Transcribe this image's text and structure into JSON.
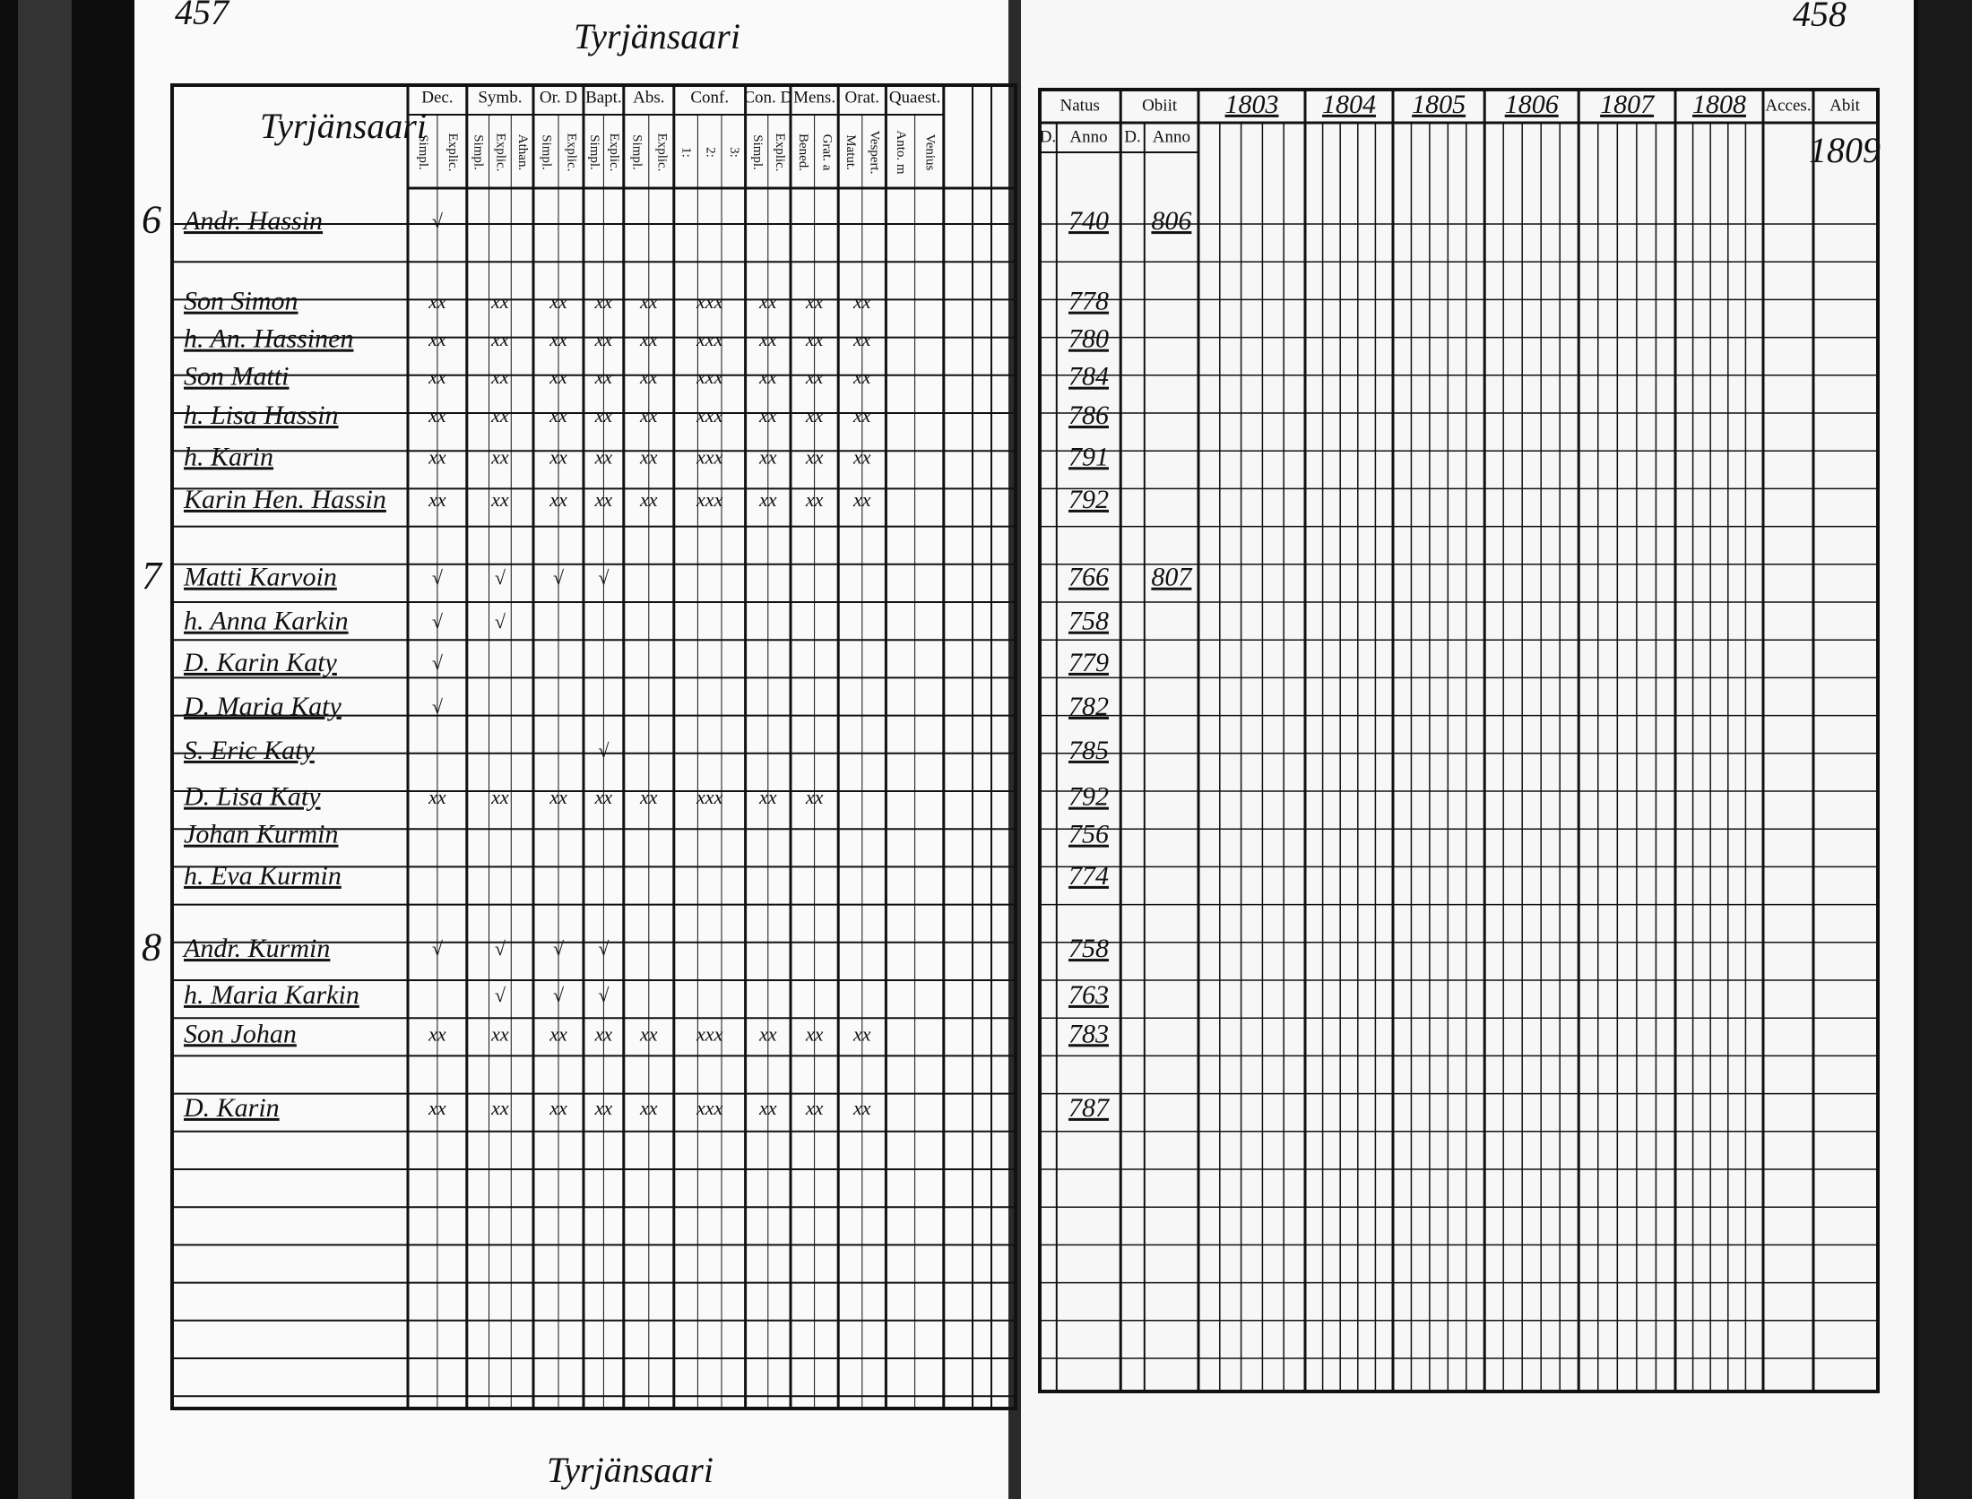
{
  "left_page": {
    "page_number": "457",
    "running_head": "Tyrjänsaari",
    "name_header": "Tyrjänsaari",
    "footer": "Tyrjänsaari",
    "column_groups": [
      {
        "label": "Dec.",
        "subs": [
          "Simpl.",
          "Explic."
        ]
      },
      {
        "label": "Symb.",
        "subs": [
          "Simpl.",
          "Explic.",
          "Athan."
        ]
      },
      {
        "label": "Or. D",
        "subs": [
          "Simpl.",
          "Explic."
        ]
      },
      {
        "label": "Bapt.",
        "subs": [
          "Simpl.",
          "Explic."
        ]
      },
      {
        "label": "Abs.",
        "subs": [
          "Simpl.",
          "Explic."
        ]
      },
      {
        "label": "Conf.",
        "subs": [
          "1:",
          "2:",
          "3:"
        ]
      },
      {
        "label": "Con. D",
        "subs": [
          "Simpl.",
          "Explic."
        ]
      },
      {
        "label": "Mens.",
        "subs": [
          "Bened.",
          "Grat. a"
        ]
      },
      {
        "label": "Orat.",
        "subs": [
          "Matut.",
          "Vespert."
        ]
      },
      {
        "label": "Quaest.",
        "subs": [
          "Anto. m",
          "Venius"
        ]
      }
    ],
    "households": [
      {
        "number": "6",
        "members": [
          {
            "name": "Andr. Hassin",
            "born": "740",
            "died": "806",
            "marks": [
              "√",
              null,
              null,
              null,
              null,
              null,
              null,
              null,
              null
            ]
          },
          {
            "name": "Son Simon",
            "born": "778",
            "marks": [
              "xx",
              "xx",
              "xx",
              "xx",
              "xx",
              "xxx",
              "xx",
              "xx",
              "xx"
            ]
          },
          {
            "name": "h. An. Hassinen",
            "born": "780",
            "marks": [
              "xx",
              "xx",
              "xx",
              "xx",
              "xx",
              "xxx",
              "xx",
              "xx",
              "xx"
            ]
          },
          {
            "name": "Son Matti",
            "born": "784",
            "marks": [
              "xx",
              "xx",
              "xx",
              "xx",
              "xx",
              "xxx",
              "xx",
              "xx",
              "xx"
            ]
          },
          {
            "name": "h. Lisa Hassin",
            "born": "786",
            "marks": [
              "xx",
              "xx",
              "xx",
              "xx",
              "xx",
              "xxx",
              "xx",
              "xx",
              "xx"
            ]
          },
          {
            "name": "h. Karin",
            "born": "791",
            "marks": [
              "xx",
              "xx",
              "xx",
              "xx",
              "xx",
              "xxx",
              "xx",
              "xx",
              "xx"
            ]
          },
          {
            "name": "Karin Hen. Hassin",
            "born": "792",
            "marks": [
              "xx",
              "xx",
              "xx",
              "xx",
              "xx",
              "xxx",
              "xx",
              "xx",
              "xx"
            ]
          }
        ]
      },
      {
        "number": "7",
        "members": [
          {
            "name": "Matti Karvoin",
            "born": "766",
            "died": "807",
            "marks": [
              "√",
              "√",
              "√",
              "√",
              null,
              null,
              null,
              null,
              null
            ]
          },
          {
            "name": "h. Anna Karkin",
            "born": "758",
            "marks": [
              "√",
              "√",
              null,
              null,
              null,
              null,
              null,
              null,
              null
            ]
          },
          {
            "name": "D. Karin Katy",
            "born": "779",
            "marks": [
              "√",
              null,
              null,
              null,
              null,
              null,
              null,
              null,
              null
            ]
          },
          {
            "name": "D. Maria Katy",
            "born": "782",
            "marks": [
              "√",
              null,
              null,
              null,
              null,
              null,
              null,
              null,
              null
            ]
          },
          {
            "name": "S. Eric Katy",
            "born": "785",
            "marks": [
              null,
              null,
              null,
              "√",
              null,
              null,
              null,
              null,
              null
            ]
          },
          {
            "name": "D. Lisa Katy",
            "born": "792",
            "marks": [
              "xx",
              "xx",
              "xx",
              "xx",
              "xx",
              "xxx",
              "xx",
              "xx",
              null
            ]
          },
          {
            "name": "Johan Kurmin",
            "born": "756"
          },
          {
            "name": "h. Eva Kurmin",
            "born": "774"
          }
        ]
      },
      {
        "number": "8",
        "members": [
          {
            "name": "Andr. Kurmin",
            "born": "758",
            "marks": [
              "√",
              "√",
              "√",
              "√",
              null,
              null,
              null,
              null,
              null
            ]
          },
          {
            "name": "h. Maria Karkin",
            "born": "763",
            "marks": [
              null,
              "√",
              "√",
              "√",
              null,
              null,
              null,
              null,
              null
            ]
          },
          {
            "name": "Son Johan",
            "born": "783",
            "marks": [
              "xx",
              "xx",
              "xx",
              "xx",
              "xx",
              "xxx",
              "xx",
              "xx",
              "xx"
            ]
          },
          {
            "name": "D. Karin",
            "born": "787",
            "marks": [
              "xx",
              "xx",
              "xx",
              "xx",
              "xx",
              "xxx",
              "xx",
              "xx",
              "xx"
            ]
          }
        ]
      }
    ]
  },
  "right_page": {
    "page_number": "458",
    "column_groups": [
      {
        "label": "Natus",
        "subs": [
          "D.",
          "Anno"
        ]
      },
      {
        "label": "Obiit",
        "subs": [
          "D.",
          "Anno"
        ]
      },
      {
        "label": "1803"
      },
      {
        "label": "1804"
      },
      {
        "label": "1805"
      },
      {
        "label": "1806"
      },
      {
        "label": "1807"
      },
      {
        "label": "1808"
      },
      {
        "label": "Acces."
      },
      {
        "label": "Abit",
        "note": "1809"
      }
    ]
  }
}
